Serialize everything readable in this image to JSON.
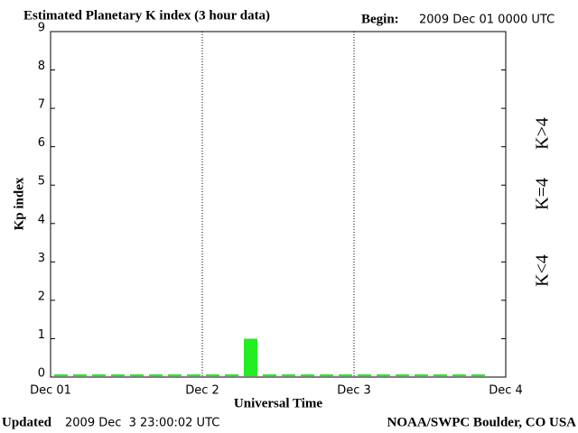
{
  "chart_data": {
    "type": "bar",
    "title": "Estimated Planetary K index (3 hour data)",
    "begin_label": "Begin:",
    "begin": "2009 Dec 01 0000 UTC",
    "x_label": "Universal Time",
    "y_label": "Kp index",
    "x": [
      0,
      3,
      6,
      9,
      12,
      15,
      18,
      21,
      24,
      27,
      30,
      33,
      36,
      39,
      42,
      45,
      48,
      51,
      54,
      57,
      60,
      63,
      66
    ],
    "values": [
      0,
      0,
      0,
      0,
      0,
      0,
      0,
      0,
      0,
      0,
      1,
      0,
      0,
      0,
      0,
      0,
      0,
      0,
      0,
      0,
      0,
      0,
      0
    ],
    "color": "#22ee22",
    "xlim": [
      0,
      72
    ],
    "xticks": [
      {
        "value": 0,
        "label": "Dec 01"
      },
      {
        "value": 24,
        "label": "Dec 2"
      },
      {
        "value": 48,
        "label": "Dec 3"
      },
      {
        "value": 72,
        "label": "Dec 4"
      }
    ],
    "ylim": [
      0,
      9
    ],
    "yticks": [
      0,
      1,
      2,
      3,
      4,
      5,
      6,
      7,
      8,
      9
    ],
    "grid": true,
    "legend": [
      {
        "label": "K<4",
        "color": "#22ee22"
      },
      {
        "label": "K=4",
        "color": "#ffcc00"
      },
      {
        "label": "K>4",
        "color": "#ff2200"
      }
    ],
    "updated_label": "Updated",
    "updated": "2009 Dec  3 23:00:02 UTC",
    "credit": "NOAA/SWPC Boulder, CO USA"
  }
}
